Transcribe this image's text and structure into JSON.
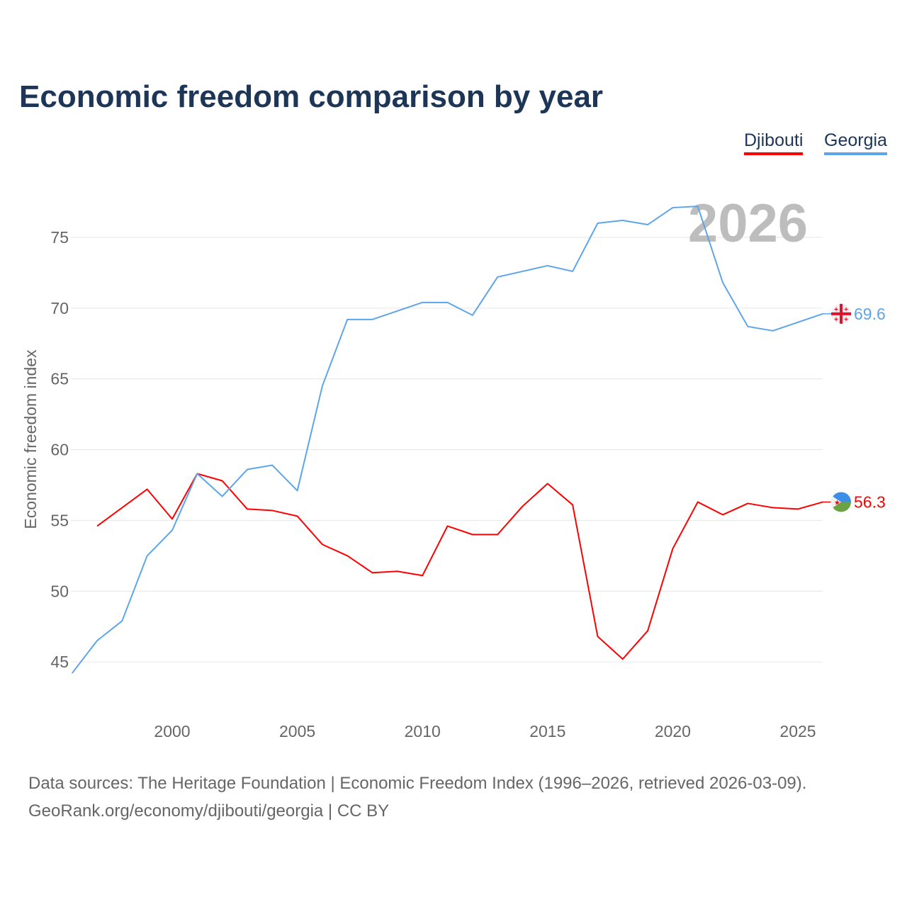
{
  "title": "Economic freedom comparison by year",
  "footer": {
    "line1": "Data sources: The Heritage Foundation | Economic Freedom Index (1996–2026, retrieved 2026-03-09).",
    "line2": "GeoRank.org/economy/djibouti/georgia | CC BY"
  },
  "year_watermark": "2026",
  "chart_data": {
    "type": "line",
    "title": "Economic freedom comparison by year",
    "xlabel": "",
    "ylabel": "Economic freedom index",
    "xlim": [
      1996,
      2026
    ],
    "ylim": [
      41.5,
      78.5
    ],
    "xticks": [
      2000,
      2005,
      2010,
      2015,
      2020,
      2025
    ],
    "yticks": [
      45,
      50,
      55,
      60,
      65,
      70,
      75
    ],
    "grid": true,
    "legend_position": "top-right",
    "series": [
      {
        "name": "Djibouti",
        "color": "#ff0000",
        "end_label": "56.3",
        "flag": "djibouti-flag",
        "x": [
          1997,
          1998,
          1999,
          2000,
          2001,
          2002,
          2003,
          2004,
          2005,
          2006,
          2007,
          2008,
          2009,
          2010,
          2011,
          2012,
          2013,
          2014,
          2015,
          2016,
          2017,
          2018,
          2019,
          2020,
          2021,
          2022,
          2023,
          2024,
          2025,
          2026
        ],
        "values": [
          54.6,
          55.9,
          57.2,
          55.1,
          58.3,
          57.8,
          55.8,
          55.7,
          55.3,
          53.3,
          52.5,
          51.3,
          51.4,
          51.1,
          54.6,
          54.0,
          54.0,
          56.0,
          57.6,
          56.1,
          46.8,
          45.2,
          47.2,
          53.0,
          56.3,
          55.4,
          56.2,
          55.9,
          55.8,
          56.3
        ]
      },
      {
        "name": "Georgia",
        "color": "#5da5ea",
        "end_label": "69.6",
        "flag": "georgia-flag",
        "x": [
          1996,
          1997,
          1998,
          1999,
          2000,
          2001,
          2002,
          2003,
          2004,
          2005,
          2006,
          2007,
          2008,
          2009,
          2010,
          2011,
          2012,
          2013,
          2014,
          2015,
          2016,
          2017,
          2018,
          2019,
          2020,
          2021,
          2022,
          2023,
          2024,
          2025,
          2026
        ],
        "values": [
          44.2,
          46.5,
          47.9,
          52.5,
          54.3,
          58.3,
          56.7,
          58.6,
          58.9,
          57.1,
          64.5,
          69.2,
          69.2,
          69.8,
          70.4,
          70.4,
          69.5,
          72.2,
          72.6,
          73.0,
          72.6,
          76.0,
          76.2,
          75.9,
          77.1,
          77.2,
          71.8,
          68.7,
          68.4,
          69.0,
          69.6
        ]
      }
    ]
  }
}
